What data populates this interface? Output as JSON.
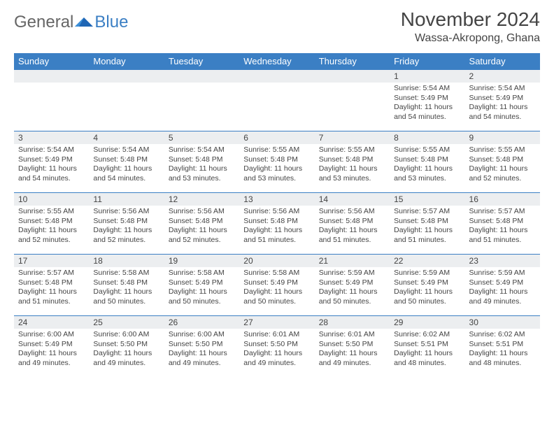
{
  "logo": {
    "text1": "General",
    "text2": "Blue"
  },
  "title": "November 2024",
  "location": "Wassa-Akropong, Ghana",
  "colors": {
    "header_bg": "#3b7fc4",
    "header_fg": "#ffffff",
    "daynum_bg": "#eceef0",
    "border": "#3b7fc4",
    "text": "#444444",
    "background": "#ffffff"
  },
  "weekdays": [
    "Sunday",
    "Monday",
    "Tuesday",
    "Wednesday",
    "Thursday",
    "Friday",
    "Saturday"
  ],
  "weeks": [
    [
      null,
      null,
      null,
      null,
      null,
      {
        "n": "1",
        "sr": "5:54 AM",
        "ss": "5:49 PM",
        "dl": "11 hours and 54 minutes."
      },
      {
        "n": "2",
        "sr": "5:54 AM",
        "ss": "5:49 PM",
        "dl": "11 hours and 54 minutes."
      }
    ],
    [
      {
        "n": "3",
        "sr": "5:54 AM",
        "ss": "5:49 PM",
        "dl": "11 hours and 54 minutes."
      },
      {
        "n": "4",
        "sr": "5:54 AM",
        "ss": "5:48 PM",
        "dl": "11 hours and 54 minutes."
      },
      {
        "n": "5",
        "sr": "5:54 AM",
        "ss": "5:48 PM",
        "dl": "11 hours and 53 minutes."
      },
      {
        "n": "6",
        "sr": "5:55 AM",
        "ss": "5:48 PM",
        "dl": "11 hours and 53 minutes."
      },
      {
        "n": "7",
        "sr": "5:55 AM",
        "ss": "5:48 PM",
        "dl": "11 hours and 53 minutes."
      },
      {
        "n": "8",
        "sr": "5:55 AM",
        "ss": "5:48 PM",
        "dl": "11 hours and 53 minutes."
      },
      {
        "n": "9",
        "sr": "5:55 AM",
        "ss": "5:48 PM",
        "dl": "11 hours and 52 minutes."
      }
    ],
    [
      {
        "n": "10",
        "sr": "5:55 AM",
        "ss": "5:48 PM",
        "dl": "11 hours and 52 minutes."
      },
      {
        "n": "11",
        "sr": "5:56 AM",
        "ss": "5:48 PM",
        "dl": "11 hours and 52 minutes."
      },
      {
        "n": "12",
        "sr": "5:56 AM",
        "ss": "5:48 PM",
        "dl": "11 hours and 52 minutes."
      },
      {
        "n": "13",
        "sr": "5:56 AM",
        "ss": "5:48 PM",
        "dl": "11 hours and 51 minutes."
      },
      {
        "n": "14",
        "sr": "5:56 AM",
        "ss": "5:48 PM",
        "dl": "11 hours and 51 minutes."
      },
      {
        "n": "15",
        "sr": "5:57 AM",
        "ss": "5:48 PM",
        "dl": "11 hours and 51 minutes."
      },
      {
        "n": "16",
        "sr": "5:57 AM",
        "ss": "5:48 PM",
        "dl": "11 hours and 51 minutes."
      }
    ],
    [
      {
        "n": "17",
        "sr": "5:57 AM",
        "ss": "5:48 PM",
        "dl": "11 hours and 51 minutes."
      },
      {
        "n": "18",
        "sr": "5:58 AM",
        "ss": "5:48 PM",
        "dl": "11 hours and 50 minutes."
      },
      {
        "n": "19",
        "sr": "5:58 AM",
        "ss": "5:49 PM",
        "dl": "11 hours and 50 minutes."
      },
      {
        "n": "20",
        "sr": "5:58 AM",
        "ss": "5:49 PM",
        "dl": "11 hours and 50 minutes."
      },
      {
        "n": "21",
        "sr": "5:59 AM",
        "ss": "5:49 PM",
        "dl": "11 hours and 50 minutes."
      },
      {
        "n": "22",
        "sr": "5:59 AM",
        "ss": "5:49 PM",
        "dl": "11 hours and 50 minutes."
      },
      {
        "n": "23",
        "sr": "5:59 AM",
        "ss": "5:49 PM",
        "dl": "11 hours and 49 minutes."
      }
    ],
    [
      {
        "n": "24",
        "sr": "6:00 AM",
        "ss": "5:49 PM",
        "dl": "11 hours and 49 minutes."
      },
      {
        "n": "25",
        "sr": "6:00 AM",
        "ss": "5:50 PM",
        "dl": "11 hours and 49 minutes."
      },
      {
        "n": "26",
        "sr": "6:00 AM",
        "ss": "5:50 PM",
        "dl": "11 hours and 49 minutes."
      },
      {
        "n": "27",
        "sr": "6:01 AM",
        "ss": "5:50 PM",
        "dl": "11 hours and 49 minutes."
      },
      {
        "n": "28",
        "sr": "6:01 AM",
        "ss": "5:50 PM",
        "dl": "11 hours and 49 minutes."
      },
      {
        "n": "29",
        "sr": "6:02 AM",
        "ss": "5:51 PM",
        "dl": "11 hours and 48 minutes."
      },
      {
        "n": "30",
        "sr": "6:02 AM",
        "ss": "5:51 PM",
        "dl": "11 hours and 48 minutes."
      }
    ]
  ],
  "labels": {
    "sunrise": "Sunrise: ",
    "sunset": "Sunset: ",
    "daylight": "Daylight: "
  }
}
